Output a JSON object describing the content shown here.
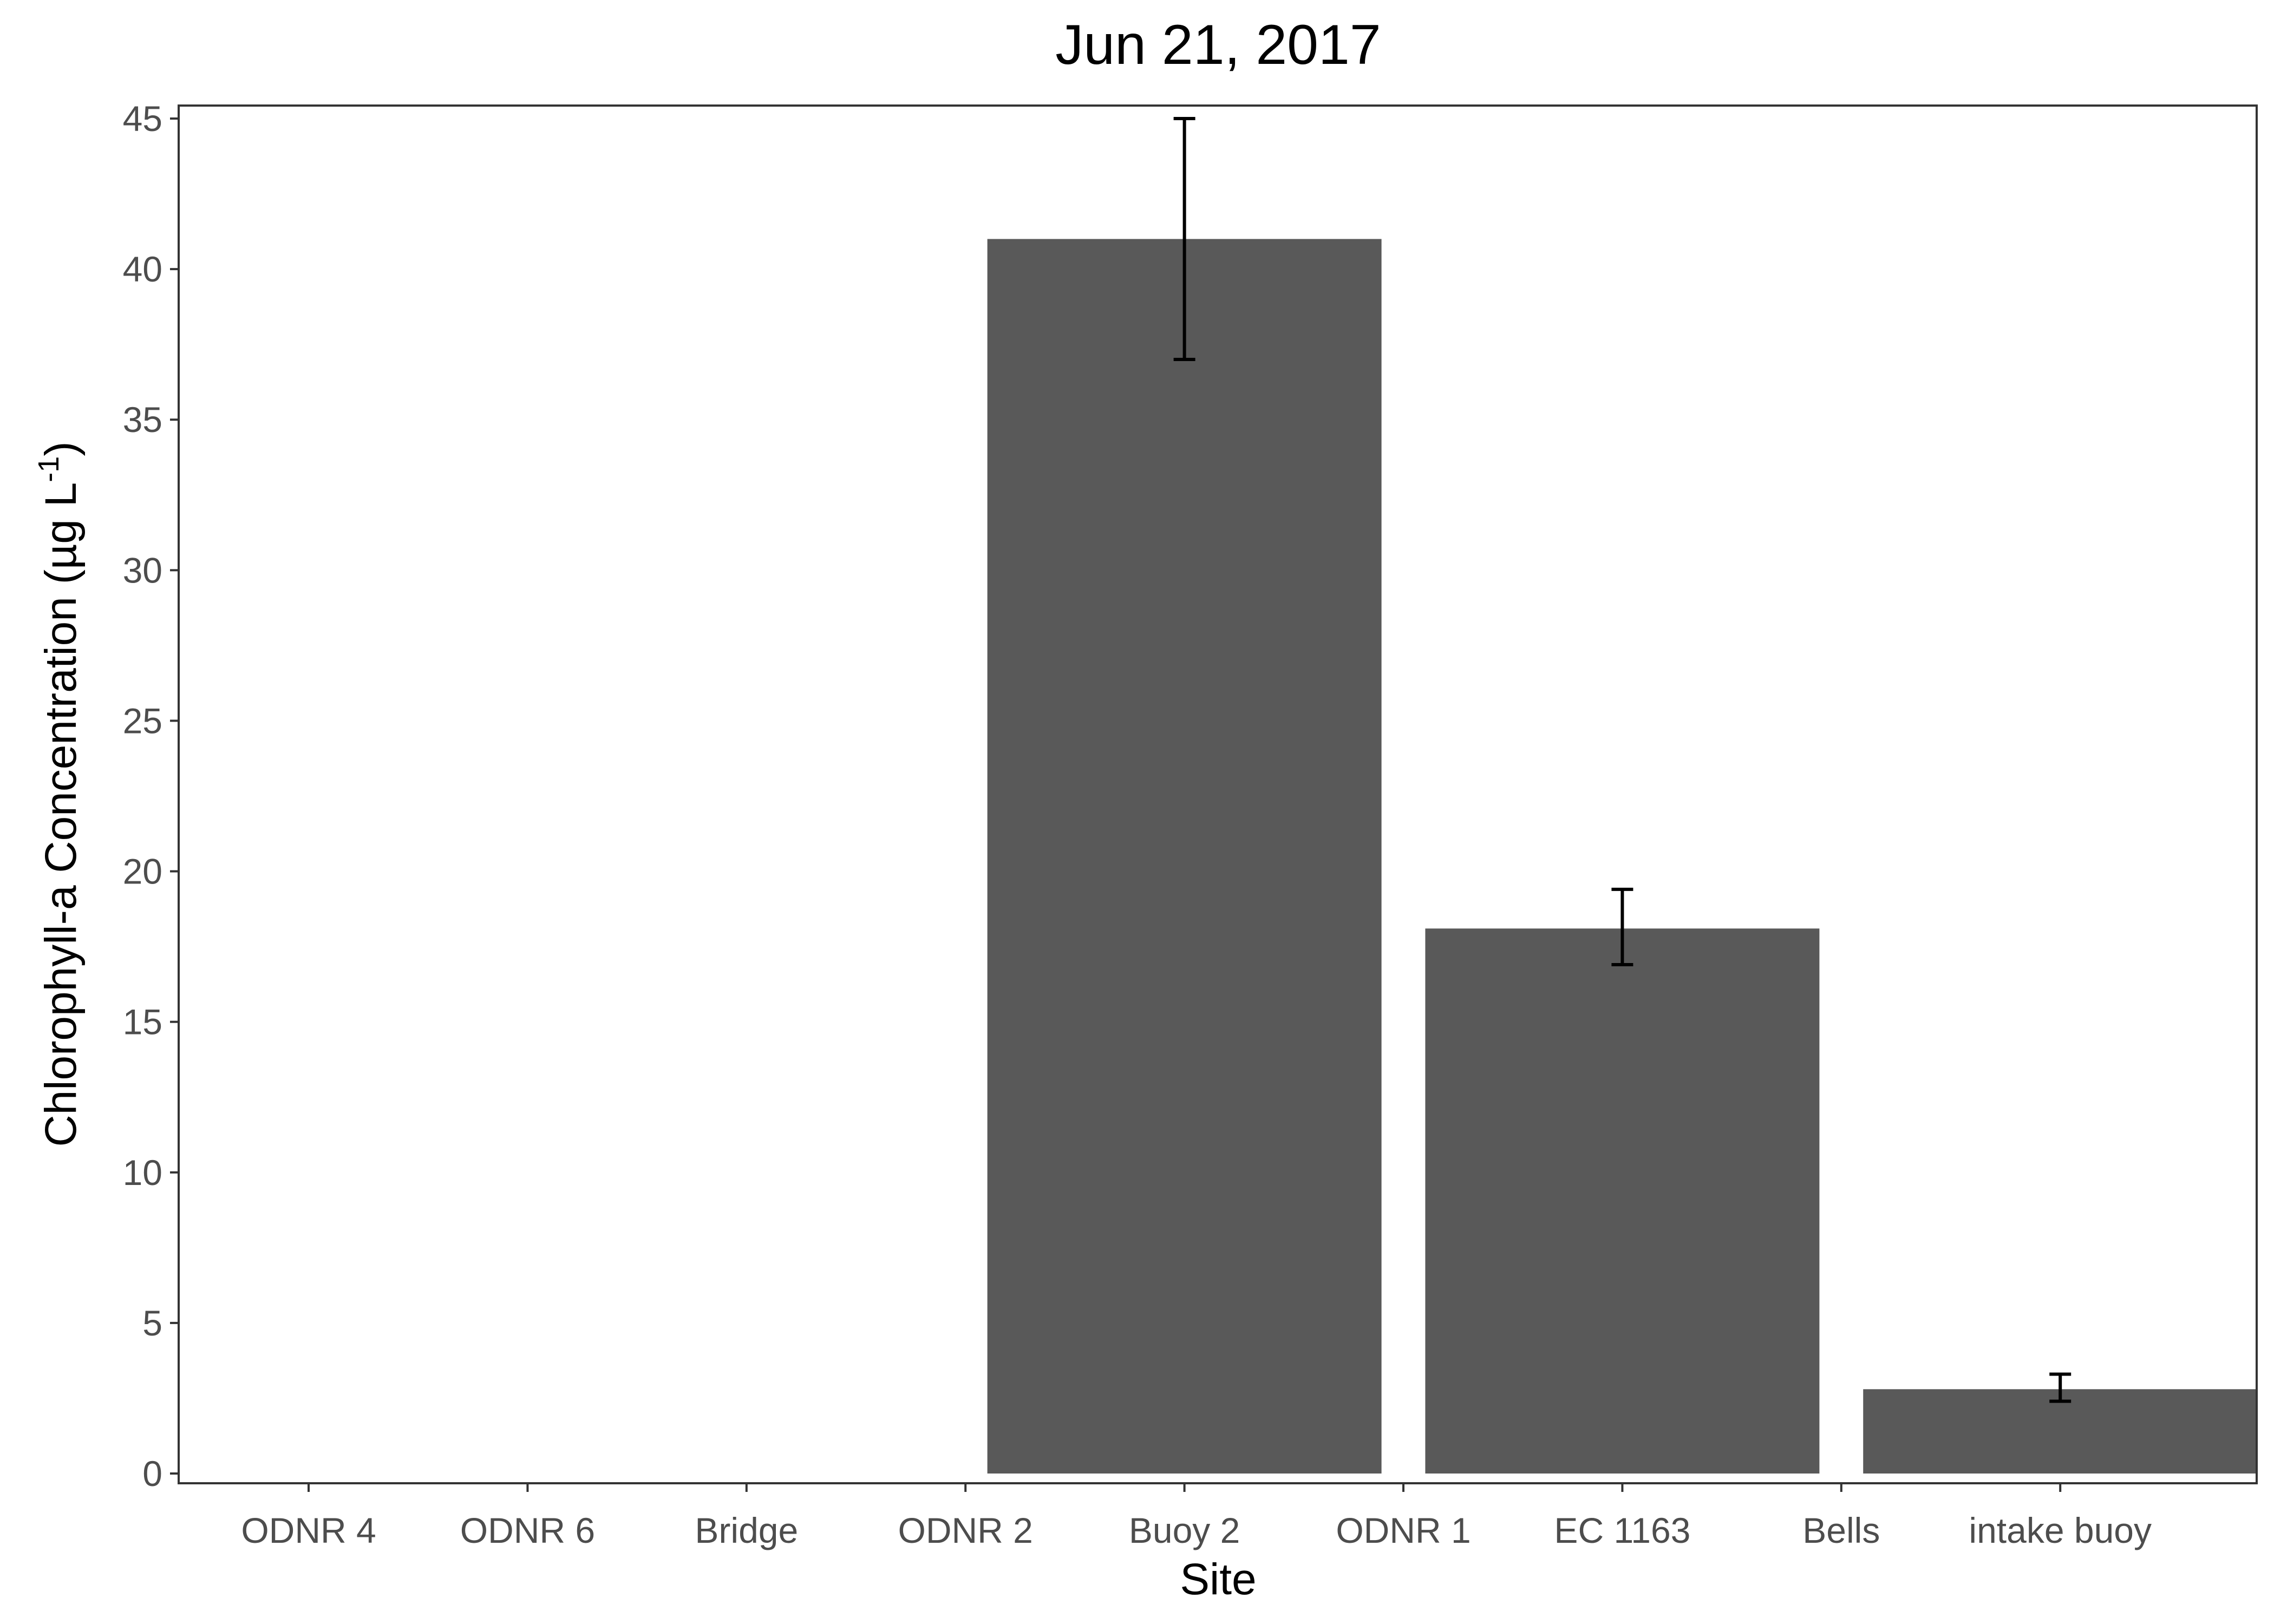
{
  "chart_data": {
    "type": "bar",
    "title": "Jun 21, 2017",
    "xlabel": "Site",
    "ylabel_main": "Chlorophyll-a Concentration (µg L",
    "ylabel_sup": "-1",
    "ylabel_end": ")",
    "categories": [
      "ODNR 4",
      "ODNR 6",
      "Bridge",
      "ODNR 2",
      "Buoy 2",
      "ODNR 1",
      "EC 1163",
      "Bells",
      "intake buoy"
    ],
    "values": [
      null,
      null,
      null,
      null,
      41.0,
      null,
      18.1,
      null,
      2.8
    ],
    "error_low": [
      null,
      null,
      null,
      null,
      37.0,
      null,
      16.9,
      null,
      2.4
    ],
    "error_high": [
      null,
      null,
      null,
      null,
      45.0,
      null,
      19.4,
      null,
      3.3
    ],
    "ylim": [
      0,
      45
    ],
    "yticks": [
      0,
      5,
      10,
      15,
      20,
      25,
      30,
      35,
      40,
      45
    ],
    "grid": false,
    "bar_color": "#595959",
    "errorbar_color": "#000000"
  }
}
